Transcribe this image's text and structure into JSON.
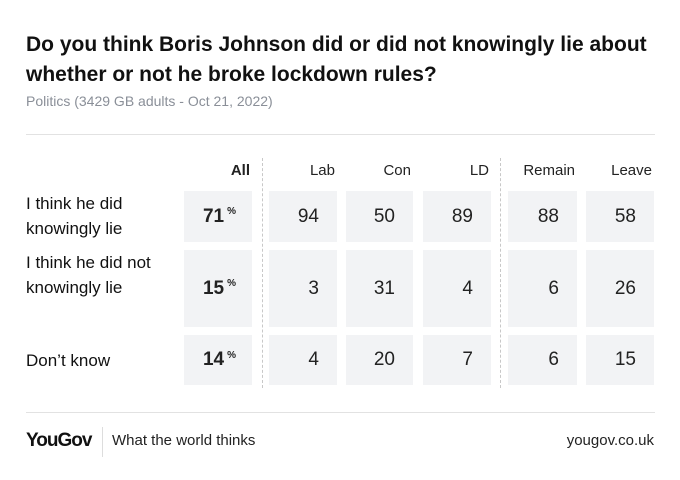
{
  "title": "Do you think Boris Johnson did or did not knowingly lie about whether or not he broke lockdown rules?",
  "subtitle": "Politics (3429 GB adults - Oct 21, 2022)",
  "chart_data": {
    "type": "table",
    "columns": [
      "All",
      "Lab",
      "Con",
      "LD",
      "Remain",
      "Leave"
    ],
    "rows": [
      {
        "label": "I think he did knowingly lie",
        "values": [
          71,
          94,
          50,
          89,
          88,
          58
        ]
      },
      {
        "label": "I think he did not knowingly lie",
        "values": [
          15,
          3,
          31,
          4,
          6,
          26
        ]
      },
      {
        "label": "Don’t know",
        "values": [
          14,
          4,
          20,
          7,
          6,
          15
        ]
      }
    ],
    "unit": "%"
  },
  "footer": {
    "logo": "YouGov",
    "tagline": "What the world thinks",
    "url": "yougov.co.uk"
  }
}
